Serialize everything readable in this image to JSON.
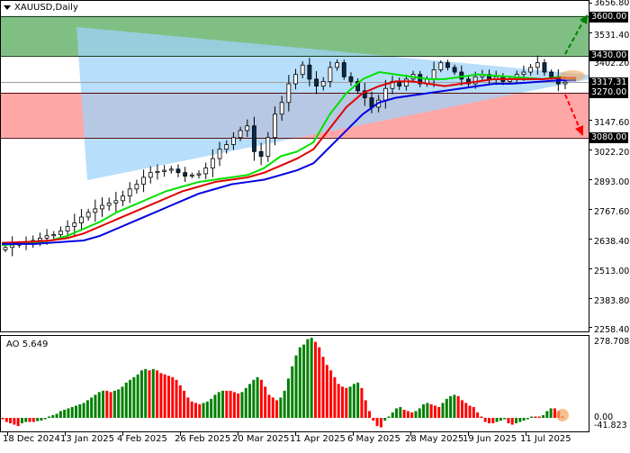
{
  "window": {
    "symbol_title": "XAUUSD,Daily"
  },
  "price_axis": {
    "ticks": [
      "3656.80",
      "3531.40",
      "3402.20",
      "3147.60",
      "3022.20",
      "2893.00",
      "2767.60",
      "2638.40",
      "2513.00",
      "2383.80",
      "2258.40"
    ],
    "highlighted": [
      "3600.00",
      "3430.00",
      "3317.31",
      "3270.00",
      "3080.00"
    ]
  },
  "ao_pane": {
    "label": "AO 5.649",
    "ticks": [
      "278.708",
      "0.00",
      "-41.823"
    ]
  },
  "time_axis": {
    "labels": [
      "18 Dec 2024",
      "13 Jan 2025",
      "4 Feb 2025",
      "26 Feb 2025",
      "20 Mar 2025",
      "11 Apr 2025",
      "6 May 2025",
      "28 May 2025",
      "19 Jun 2025",
      "11 Jul 2025"
    ]
  },
  "colors": {
    "resistance_zone": "#7fbf84",
    "support_zone": "#ffa6a6",
    "triangle": "#9fd3f8",
    "ma_fast": "#00e000",
    "ma_mid": "#e00000",
    "ma_slow": "#0000e0",
    "ao_up": "#008000",
    "ao_down": "#ff0000",
    "target_up": "#008000",
    "target_down": "#ff0000"
  },
  "chart_data": [
    {
      "type": "candlestick",
      "title": "XAUUSD,Daily",
      "xlabel": "",
      "ylabel": "",
      "ylim": [
        2258.4,
        3656.8
      ],
      "x_tick_labels": [
        "18 Dec 2024",
        "13 Jan 2025",
        "4 Feb 2025",
        "26 Feb 2025",
        "20 Mar 2025",
        "11 Apr 2025",
        "6 May 2025",
        "28 May 2025",
        "19 Jun 2025",
        "11 Jul 2025"
      ],
      "y_tick_labels": [
        "3656.80",
        "3531.40",
        "3402.20",
        "3147.60",
        "3022.20",
        "2893.00",
        "2767.60",
        "2638.40",
        "2513.00",
        "2383.80",
        "2258.40"
      ],
      "current_price": 3317.31,
      "levels": [
        {
          "name": "resistance_target",
          "value": 3600.0
        },
        {
          "name": "resistance",
          "value": 3430.0
        },
        {
          "name": "support",
          "value": 3270.0
        },
        {
          "name": "support_target",
          "value": 3080.0
        }
      ],
      "zones": [
        {
          "name": "resistance_zone",
          "from": 3430.0,
          "to": 3600.0,
          "color": "#7fbf84"
        },
        {
          "name": "support_zone",
          "from": 3080.0,
          "to": 3270.0,
          "color": "#ffa6a6"
        }
      ],
      "close_approx": [
        2610,
        2620,
        2625,
        2630,
        2640,
        2650,
        2660,
        2665,
        2680,
        2700,
        2715,
        2740,
        2760,
        2775,
        2790,
        2800,
        2810,
        2830,
        2860,
        2880,
        2910,
        2930,
        2935,
        2940,
        2945,
        2930,
        2915,
        2920,
        2925,
        2950,
        2990,
        3030,
        3050,
        3080,
        3110,
        3130,
        3020,
        3000,
        3080,
        3180,
        3230,
        3310,
        3350,
        3390,
        3330,
        3300,
        3320,
        3380,
        3400,
        3340,
        3320,
        3280,
        3250,
        3210,
        3240,
        3290,
        3320,
        3300,
        3330,
        3350,
        3310,
        3330,
        3370,
        3400,
        3380,
        3360,
        3330,
        3310,
        3340,
        3350,
        3330,
        3340,
        3320,
        3330,
        3350,
        3360,
        3380,
        3400,
        3360,
        3340,
        3310,
        3317
      ],
      "series": [
        {
          "name": "MA fast (green)",
          "values": [
            2620,
            2625,
            2630,
            2640,
            2660,
            2690,
            2720,
            2760,
            2790,
            2820,
            2850,
            2870,
            2890,
            2900,
            2910,
            2920,
            2950,
            3000,
            3020,
            3060,
            3180,
            3270,
            3330,
            3360,
            3350,
            3340,
            3330,
            3330,
            3340,
            3350,
            3345,
            3340,
            3335,
            3330,
            3340,
            3330
          ]
        },
        {
          "name": "MA mid (red)",
          "values": [
            2630,
            2632,
            2635,
            2640,
            2650,
            2670,
            2700,
            2730,
            2760,
            2790,
            2820,
            2850,
            2870,
            2890,
            2900,
            2910,
            2930,
            2960,
            2990,
            3030,
            3120,
            3210,
            3270,
            3300,
            3320,
            3320,
            3310,
            3300,
            3310,
            3320,
            3330,
            3330,
            3330,
            3330,
            3335,
            3335
          ]
        },
        {
          "name": "MA slow (blue)",
          "values": [
            2625,
            2625,
            2625,
            2630,
            2635,
            2640,
            2660,
            2690,
            2720,
            2750,
            2780,
            2810,
            2840,
            2860,
            2880,
            2890,
            2900,
            2920,
            2940,
            2970,
            3040,
            3110,
            3180,
            3230,
            3250,
            3260,
            3270,
            3280,
            3290,
            3300,
            3310,
            3310,
            3315,
            3320,
            3325,
            3325
          ]
        }
      ]
    },
    {
      "type": "bar",
      "title": "AO 5.649",
      "ylim": [
        -41.823,
        278.708
      ],
      "y_tick_labels": [
        "278.708",
        "0.00",
        "-41.823"
      ],
      "last_value": 5.649,
      "values": [
        -5,
        -15,
        -20,
        -25,
        -30,
        -20,
        -15,
        -15,
        -15,
        -12,
        -10,
        -5,
        5,
        10,
        15,
        25,
        30,
        35,
        40,
        45,
        50,
        55,
        65,
        75,
        85,
        95,
        100,
        100,
        95,
        100,
        105,
        115,
        130,
        140,
        150,
        160,
        175,
        180,
        175,
        180,
        175,
        165,
        160,
        155,
        150,
        140,
        120,
        100,
        75,
        60,
        55,
        50,
        55,
        60,
        70,
        85,
        95,
        100,
        100,
        100,
        95,
        90,
        95,
        110,
        125,
        140,
        150,
        140,
        115,
        85,
        75,
        65,
        75,
        100,
        145,
        190,
        230,
        260,
        270,
        290,
        295,
        280,
        260,
        225,
        195,
        175,
        150,
        125,
        115,
        110,
        115,
        125,
        130,
        110,
        65,
        25,
        -10,
        -30,
        -35,
        -10,
        5,
        20,
        35,
        40,
        30,
        25,
        20,
        25,
        35,
        50,
        55,
        50,
        45,
        40,
        55,
        70,
        80,
        85,
        80,
        65,
        55,
        45,
        40,
        20,
        5,
        -15,
        -20,
        -20,
        -15,
        -10,
        -5,
        -20,
        -25,
        -20,
        -15,
        -10,
        -5,
        5,
        5,
        5,
        10,
        25,
        35,
        35,
        25,
        5
      ],
      "colors_rule": "green if value > previous, red otherwise"
    }
  ]
}
